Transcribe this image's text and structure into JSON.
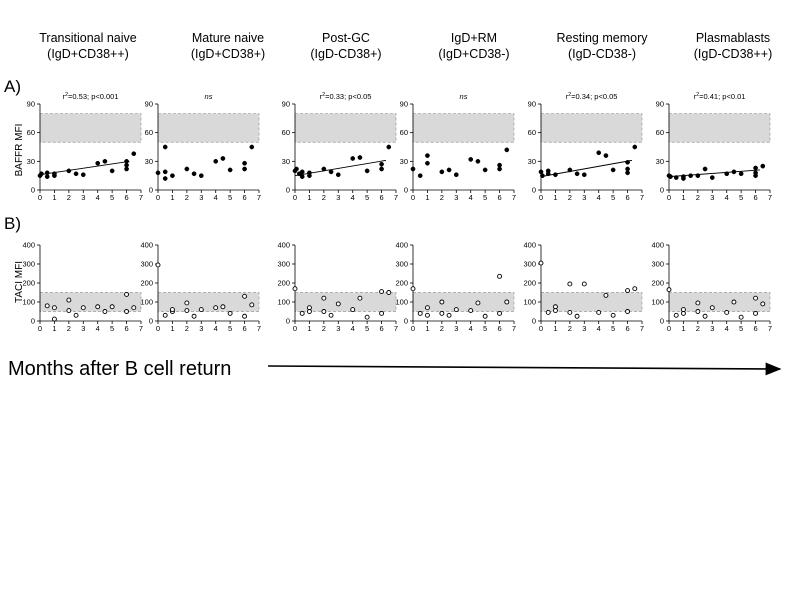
{
  "figure": {
    "panel_a_label": "A)",
    "panel_b_label": "B)",
    "xaxis_caption": "Months after B cell return"
  },
  "chart_data": [
    {
      "type": "scatter",
      "panel": "A",
      "ylabel": "BAFFR MFI",
      "xlim": [
        0,
        7
      ],
      "ylim": [
        0,
        90
      ],
      "xticks": [
        0,
        1,
        2,
        3,
        4,
        5,
        6,
        7
      ],
      "yticks": [
        0,
        30,
        60,
        90
      ],
      "normal_range": [
        50,
        80
      ],
      "marker": "filled",
      "grid": false,
      "panels": [
        {
          "title_line1": "Transitional naive",
          "title_line2": "(IgD+CD38++)",
          "annotation": "r2=0.53; p<0.001",
          "annotation_parts": [
            "r",
            "2",
            "=0.53; p<0.001"
          ],
          "regression": [
            [
              0,
              16
            ],
            [
              6.2,
              30
            ]
          ],
          "points": [
            [
              0,
              15
            ],
            [
              0.1,
              17
            ],
            [
              0.5,
              14
            ],
            [
              0.5,
              18
            ],
            [
              1,
              15
            ],
            [
              1,
              17
            ],
            [
              2,
              20
            ],
            [
              2.5,
              17
            ],
            [
              3,
              16
            ],
            [
              4,
              28
            ],
            [
              4.5,
              30
            ],
            [
              5,
              20
            ],
            [
              6,
              22
            ],
            [
              6,
              26
            ],
            [
              6,
              30
            ],
            [
              6.5,
              38
            ]
          ]
        },
        {
          "title_line1": "Mature naive",
          "title_line2": "(IgD+CD38+)",
          "annotation": "ns",
          "annotation_parts": [
            "ns"
          ],
          "regression": null,
          "points": [
            [
              0,
              18
            ],
            [
              0.5,
              45
            ],
            [
              0.5,
              19
            ],
            [
              0.5,
              12
            ],
            [
              1,
              15
            ],
            [
              2,
              22
            ],
            [
              2.5,
              17
            ],
            [
              3,
              15
            ],
            [
              4,
              30
            ],
            [
              4.5,
              33
            ],
            [
              5,
              21
            ],
            [
              6,
              22
            ],
            [
              6,
              28
            ],
            [
              6.5,
              45
            ]
          ]
        },
        {
          "title_line1": "Post-GC",
          "title_line2": "(IgD-CD38+)",
          "annotation": "r2=0.33; p<0.05",
          "annotation_parts": [
            "r",
            "2",
            "=0.33; p<0.05"
          ],
          "regression": [
            [
              0,
              15
            ],
            [
              6.3,
              31
            ]
          ],
          "points": [
            [
              0,
              20
            ],
            [
              0.1,
              22
            ],
            [
              0.3,
              17
            ],
            [
              0.5,
              14
            ],
            [
              0.5,
              19
            ],
            [
              1,
              15
            ],
            [
              1,
              18
            ],
            [
              2,
              22
            ],
            [
              2.5,
              19
            ],
            [
              3,
              16
            ],
            [
              4,
              33
            ],
            [
              4.5,
              34
            ],
            [
              5,
              20
            ],
            [
              6,
              22
            ],
            [
              6,
              27
            ],
            [
              6.5,
              45
            ]
          ]
        },
        {
          "title_line1": "IgD+RM",
          "title_line2": "(IgD+CD38-)",
          "annotation": "ns",
          "annotation_parts": [
            "ns"
          ],
          "regression": null,
          "points": [
            [
              0,
              22
            ],
            [
              0.5,
              15
            ],
            [
              1,
              36
            ],
            [
              1,
              28
            ],
            [
              2,
              19
            ],
            [
              2.5,
              21
            ],
            [
              3,
              16
            ],
            [
              4,
              32
            ],
            [
              4.5,
              30
            ],
            [
              5,
              21
            ],
            [
              6,
              22
            ],
            [
              6,
              26
            ],
            [
              6.5,
              42
            ]
          ]
        },
        {
          "title_line1": "Resting memory",
          "title_line2": "(IgD-CD38-)",
          "annotation": "r2=0.34; p<0.05",
          "annotation_parts": [
            "r",
            "2",
            "=0.34; p<0.05"
          ],
          "regression": [
            [
              0,
              14
            ],
            [
              6.3,
              31
            ]
          ],
          "points": [
            [
              0,
              19
            ],
            [
              0.1,
              15
            ],
            [
              0.5,
              17
            ],
            [
              0.5,
              20
            ],
            [
              1,
              16
            ],
            [
              2,
              21
            ],
            [
              2.5,
              17
            ],
            [
              3,
              16
            ],
            [
              4,
              39
            ],
            [
              4.5,
              36
            ],
            [
              5,
              21
            ],
            [
              6,
              18
            ],
            [
              6,
              22
            ],
            [
              6,
              29
            ],
            [
              6.5,
              45
            ]
          ]
        },
        {
          "title_line1": "Plasmablasts",
          "title_line2": "(IgD-CD38++)",
          "annotation": "r2=0.41; p<0.01",
          "annotation_parts": [
            "r",
            "2",
            "=0.41; p<0.01"
          ],
          "regression": [
            [
              0,
              14
            ],
            [
              6.3,
              21
            ]
          ],
          "points": [
            [
              0,
              15
            ],
            [
              0.1,
              14
            ],
            [
              0.5,
              13
            ],
            [
              1,
              12
            ],
            [
              1,
              14
            ],
            [
              1.5,
              15
            ],
            [
              2,
              15
            ],
            [
              2.5,
              22
            ],
            [
              3,
              13
            ],
            [
              4,
              17
            ],
            [
              4.5,
              19
            ],
            [
              5,
              17
            ],
            [
              6,
              15
            ],
            [
              6,
              18
            ],
            [
              6,
              23
            ],
            [
              6.5,
              25
            ]
          ]
        }
      ]
    },
    {
      "type": "scatter",
      "panel": "B",
      "ylabel": "TACI MFI",
      "xlim": [
        0,
        7
      ],
      "ylim": [
        0,
        400
      ],
      "xticks": [
        0,
        1,
        2,
        3,
        4,
        5,
        6,
        7
      ],
      "yticks": [
        0,
        100,
        200,
        300,
        400
      ],
      "normal_range": [
        50,
        150
      ],
      "marker": "open",
      "grid": false,
      "panels": [
        {
          "title_line1": "Transitional naive",
          "points": [
            [
              0.5,
              80
            ],
            [
              1,
              70
            ],
            [
              1,
              10
            ],
            [
              2,
              110
            ],
            [
              2,
              55
            ],
            [
              2.5,
              30
            ],
            [
              3,
              70
            ],
            [
              4,
              75
            ],
            [
              4.5,
              50
            ],
            [
              5,
              75
            ],
            [
              6,
              140
            ],
            [
              6,
              50
            ],
            [
              6.5,
              70
            ]
          ]
        },
        {
          "title_line1": "Mature naive",
          "points": [
            [
              0,
              295
            ],
            [
              0.5,
              30
            ],
            [
              1,
              50
            ],
            [
              1,
              60
            ],
            [
              2,
              95
            ],
            [
              2,
              55
            ],
            [
              2.5,
              25
            ],
            [
              3,
              60
            ],
            [
              4,
              70
            ],
            [
              4.5,
              75
            ],
            [
              5,
              40
            ],
            [
              6,
              130
            ],
            [
              6,
              25
            ],
            [
              6.5,
              85
            ]
          ]
        },
        {
          "title_line1": "Post-GC",
          "points": [
            [
              0,
              170
            ],
            [
              0.5,
              40
            ],
            [
              1,
              70
            ],
            [
              1,
              50
            ],
            [
              2,
              120
            ],
            [
              2,
              50
            ],
            [
              2.5,
              30
            ],
            [
              3,
              90
            ],
            [
              4,
              60
            ],
            [
              4.5,
              120
            ],
            [
              5,
              20
            ],
            [
              6,
              155
            ],
            [
              6,
              40
            ],
            [
              6.5,
              150
            ]
          ]
        },
        {
          "title_line1": "IgD+RM",
          "points": [
            [
              0,
              170
            ],
            [
              0.5,
              40
            ],
            [
              1,
              70
            ],
            [
              1,
              30
            ],
            [
              2,
              100
            ],
            [
              2,
              40
            ],
            [
              2.5,
              30
            ],
            [
              3,
              60
            ],
            [
              4,
              55
            ],
            [
              4.5,
              95
            ],
            [
              5,
              25
            ],
            [
              6,
              235
            ],
            [
              6,
              40
            ],
            [
              6.5,
              100
            ]
          ]
        },
        {
          "title_line1": "Resting memory",
          "points": [
            [
              0,
              305
            ],
            [
              0.5,
              45
            ],
            [
              1,
              75
            ],
            [
              1,
              55
            ],
            [
              2,
              195
            ],
            [
              2,
              45
            ],
            [
              2.5,
              25
            ],
            [
              3,
              195
            ],
            [
              4,
              45
            ],
            [
              4.5,
              135
            ],
            [
              5,
              30
            ],
            [
              6,
              160
            ],
            [
              6,
              50
            ],
            [
              6.5,
              170
            ]
          ]
        },
        {
          "title_line1": "Plasmablasts",
          "points": [
            [
              0,
              165
            ],
            [
              0.5,
              30
            ],
            [
              1,
              60
            ],
            [
              1,
              40
            ],
            [
              2,
              95
            ],
            [
              2,
              50
            ],
            [
              2.5,
              25
            ],
            [
              3,
              70
            ],
            [
              4,
              45
            ],
            [
              4.5,
              100
            ],
            [
              5,
              20
            ],
            [
              6,
              120
            ],
            [
              6,
              40
            ],
            [
              6.5,
              90
            ]
          ]
        }
      ]
    }
  ]
}
